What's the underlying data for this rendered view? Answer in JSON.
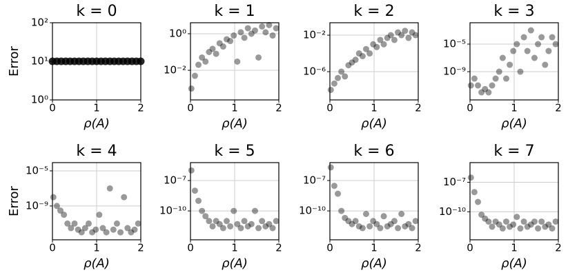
{
  "chart_data": [
    {
      "type": "scatter",
      "title": "k = 0",
      "xlabel": "ρ(A)",
      "ylabel": "Error",
      "log_y": true,
      "grid": true,
      "color": "#000000",
      "xlim": [
        0,
        2
      ],
      "xticks": [
        0,
        1,
        2
      ],
      "ylim": [
        1,
        100
      ],
      "yticks": [
        {
          "value": 1,
          "label": "10⁰"
        },
        {
          "value": 10,
          "label": "10¹"
        },
        {
          "value": 100,
          "label": "10²"
        }
      ],
      "x": [
        0,
        0.1,
        0.2,
        0.3,
        0.4,
        0.5,
        0.6,
        0.7,
        0.8,
        0.9,
        1,
        1.1,
        1.2,
        1.3,
        1.4,
        1.5,
        1.6,
        1.7,
        1.8,
        1.9,
        2
      ],
      "values": [
        10,
        10,
        10,
        10,
        10,
        10,
        10,
        10,
        10,
        10,
        10,
        10,
        10,
        10,
        10,
        10,
        10,
        10,
        10,
        10,
        10
      ]
    },
    {
      "type": "scatter",
      "title": "k = 1",
      "xlabel": "ρ(A)",
      "log_y": true,
      "grid": true,
      "color": "#000000",
      "xlim": [
        0,
        2
      ],
      "xticks": [
        0,
        1,
        2
      ],
      "ylim": [
        0.00024,
        4
      ],
      "yticks": [
        {
          "value": 0.01,
          "label": "10⁻²"
        },
        {
          "value": 1,
          "label": "10⁰"
        }
      ],
      "x": [
        0.02,
        0.1,
        0.18,
        0.26,
        0.34,
        0.42,
        0.5,
        0.58,
        0.66,
        0.74,
        0.82,
        0.9,
        0.98,
        1.06,
        1.14,
        1.22,
        1.3,
        1.38,
        1.46,
        1.54,
        1.62,
        1.7,
        1.78,
        1.86,
        1.94
      ],
      "values": [
        0.001,
        0.005,
        0.02,
        0.05,
        0.03,
        0.1,
        0.15,
        0.08,
        0.3,
        0.2,
        0.5,
        0.4,
        0.8,
        0.03,
        1.2,
        0.6,
        2,
        1,
        1.5,
        0.05,
        2.5,
        1.2,
        3,
        0.8,
        2
      ]
    },
    {
      "type": "scatter",
      "title": "k = 2",
      "xlabel": "ρ(A)",
      "log_y": true,
      "grid": true,
      "color": "#000000",
      "xlim": [
        0,
        2
      ],
      "xticks": [
        0,
        1,
        2
      ],
      "ylim": [
        8e-10,
        0.23
      ],
      "yticks": [
        {
          "value": 1e-06,
          "label": "10⁻⁶"
        },
        {
          "value": 0.01,
          "label": "10⁻²"
        }
      ],
      "x": [
        0.02,
        0.1,
        0.18,
        0.26,
        0.34,
        0.42,
        0.5,
        0.58,
        0.66,
        0.74,
        0.82,
        0.9,
        0.98,
        1.06,
        1.14,
        1.22,
        1.3,
        1.38,
        1.46,
        1.54,
        1.62,
        1.7,
        1.78,
        1.86,
        1.94
      ],
      "values": [
        1e-08,
        5e-08,
        2e-07,
        1e-06,
        3e-07,
        5e-06,
        1e-05,
        2e-05,
        0.0001,
        5e-05,
        0.0003,
        0.0001,
        0.001,
        0.0005,
        0.003,
        0.001,
        0.005,
        0.01,
        0.003,
        0.02,
        0.01,
        0.03,
        0.005,
        0.02,
        0.01
      ]
    },
    {
      "type": "scatter",
      "title": "k = 3",
      "xlabel": "ρ(A)",
      "log_y": true,
      "grid": true,
      "color": "#000000",
      "xlim": [
        0,
        2
      ],
      "xticks": [
        0,
        1,
        2
      ],
      "ylim": [
        8e-14,
        0.0126
      ],
      "yticks": [
        {
          "value": 1e-09,
          "label": "10⁻⁹"
        },
        {
          "value": 1e-05,
          "label": "10⁻⁵"
        }
      ],
      "x": [
        0.02,
        0.1,
        0.18,
        0.26,
        0.34,
        0.42,
        0.5,
        0.58,
        0.66,
        0.74,
        0.82,
        0.9,
        0.98,
        1.06,
        1.14,
        1.22,
        1.3,
        1.38,
        1.46,
        1.54,
        1.62,
        1.7,
        1.78,
        1.86,
        1.94
      ],
      "values": [
        1e-11,
        1e-10,
        1e-11,
        1e-12,
        3e-12,
        1e-12,
        1e-11,
        1e-10,
        1e-09,
        1e-07,
        1e-10,
        1e-08,
        1e-06,
        1e-05,
        1e-09,
        0.0001,
        1e-06,
        0.001,
        1e-07,
        1e-05,
        0.0001,
        1e-08,
        1e-06,
        0.0001,
        1e-05
      ]
    },
    {
      "type": "scatter",
      "title": "k = 4",
      "xlabel": "ρ(A)",
      "ylabel": "Error",
      "log_y": true,
      "grid": true,
      "color": "#000000",
      "xlim": [
        0,
        2
      ],
      "xticks": [
        0,
        1,
        2
      ],
      "ylim": [
        1.4e-13,
        8.7e-05
      ],
      "yticks": [
        {
          "value": 1e-09,
          "label": "10⁻⁹"
        },
        {
          "value": 1e-05,
          "label": "10⁻⁵"
        }
      ],
      "x": [
        0.02,
        0.1,
        0.18,
        0.26,
        0.34,
        0.42,
        0.5,
        0.58,
        0.66,
        0.74,
        0.82,
        0.9,
        0.98,
        1.06,
        1.14,
        1.22,
        1.3,
        1.38,
        1.46,
        1.54,
        1.62,
        1.7,
        1.78,
        1.86,
        1.94
      ],
      "values": [
        1e-08,
        1e-09,
        3e-10,
        1e-10,
        1e-11,
        3e-12,
        1e-11,
        2e-12,
        1e-12,
        3e-12,
        1e-11,
        1e-12,
        2e-12,
        1e-10,
        3e-12,
        1e-12,
        1e-07,
        2e-12,
        1e-11,
        1e-12,
        1e-08,
        3e-12,
        1e-12,
        2e-12,
        1e-11
      ]
    },
    {
      "type": "scatter",
      "title": "k = 5",
      "xlabel": "ρ(A)",
      "log_y": true,
      "grid": true,
      "color": "#000000",
      "xlim": [
        0,
        2
      ],
      "xticks": [
        0,
        1,
        2
      ],
      "ylim": [
        1.4e-13,
        5.9e-06
      ],
      "yticks": [
        {
          "value": 1e-10,
          "label": "10⁻¹⁰"
        },
        {
          "value": 1e-07,
          "label": "10⁻⁷"
        }
      ],
      "x": [
        0.02,
        0.1,
        0.18,
        0.26,
        0.34,
        0.42,
        0.5,
        0.58,
        0.66,
        0.74,
        0.82,
        0.9,
        0.98,
        1.06,
        1.14,
        1.22,
        1.3,
        1.38,
        1.46,
        1.54,
        1.62,
        1.7,
        1.78,
        1.86,
        1.94
      ],
      "values": [
        1e-06,
        1e-08,
        1e-09,
        1e-10,
        3e-11,
        1e-11,
        3e-12,
        1e-11,
        5e-12,
        2e-12,
        1e-11,
        3e-12,
        1e-10,
        5e-12,
        2e-12,
        1e-11,
        3e-12,
        5e-12,
        1e-10,
        2e-12,
        1e-11,
        3e-12,
        5e-12,
        2e-12,
        1e-11
      ]
    },
    {
      "type": "scatter",
      "title": "k = 6",
      "xlabel": "ρ(A)",
      "log_y": true,
      "grid": true,
      "color": "#000000",
      "xlim": [
        0,
        2
      ],
      "xticks": [
        0,
        1,
        2
      ],
      "ylim": [
        1.4e-13,
        5.9e-06
      ],
      "yticks": [
        {
          "value": 1e-10,
          "label": "10⁻¹⁰"
        },
        {
          "value": 1e-07,
          "label": "10⁻⁷"
        }
      ],
      "x": [
        0.02,
        0.1,
        0.18,
        0.26,
        0.34,
        0.42,
        0.5,
        0.58,
        0.66,
        0.74,
        0.82,
        0.9,
        0.98,
        1.06,
        1.14,
        1.22,
        1.3,
        1.38,
        1.46,
        1.54,
        1.62,
        1.7,
        1.78,
        1.86,
        1.94
      ],
      "values": [
        2e-06,
        3e-08,
        5e-09,
        1e-10,
        2e-11,
        1e-11,
        5e-12,
        1e-11,
        3e-12,
        2e-12,
        5e-11,
        3e-12,
        1e-11,
        5e-12,
        2e-12,
        3e-11,
        3e-12,
        5e-12,
        1e-11,
        2e-12,
        5e-11,
        3e-12,
        5e-12,
        2e-12,
        1e-11
      ]
    },
    {
      "type": "scatter",
      "title": "k = 7",
      "xlabel": "ρ(A)",
      "log_y": true,
      "grid": true,
      "color": "#000000",
      "xlim": [
        0,
        2
      ],
      "xticks": [
        0,
        1,
        2
      ],
      "ylim": [
        1.4e-13,
        1e-05
      ],
      "yticks": [
        {
          "value": 1e-10,
          "label": "10⁻¹⁰"
        },
        {
          "value": 1e-07,
          "label": "10⁻⁷"
        }
      ],
      "x": [
        0.02,
        0.1,
        0.18,
        0.26,
        0.34,
        0.42,
        0.5,
        0.58,
        0.66,
        0.74,
        0.82,
        0.9,
        0.98,
        1.06,
        1.14,
        1.22,
        1.3,
        1.38,
        1.46,
        1.54,
        1.62,
        1.7,
        1.78,
        1.86,
        1.94
      ],
      "values": [
        3e-07,
        1e-08,
        1e-09,
        5e-11,
        2e-11,
        1e-11,
        3e-12,
        1e-11,
        5e-12,
        2e-12,
        1e-11,
        3e-12,
        5e-12,
        3e-11,
        2e-12,
        1e-11,
        3e-12,
        5e-12,
        1e-11,
        2e-12,
        1e-11,
        3e-12,
        5e-12,
        2e-12,
        1e-11
      ]
    }
  ]
}
